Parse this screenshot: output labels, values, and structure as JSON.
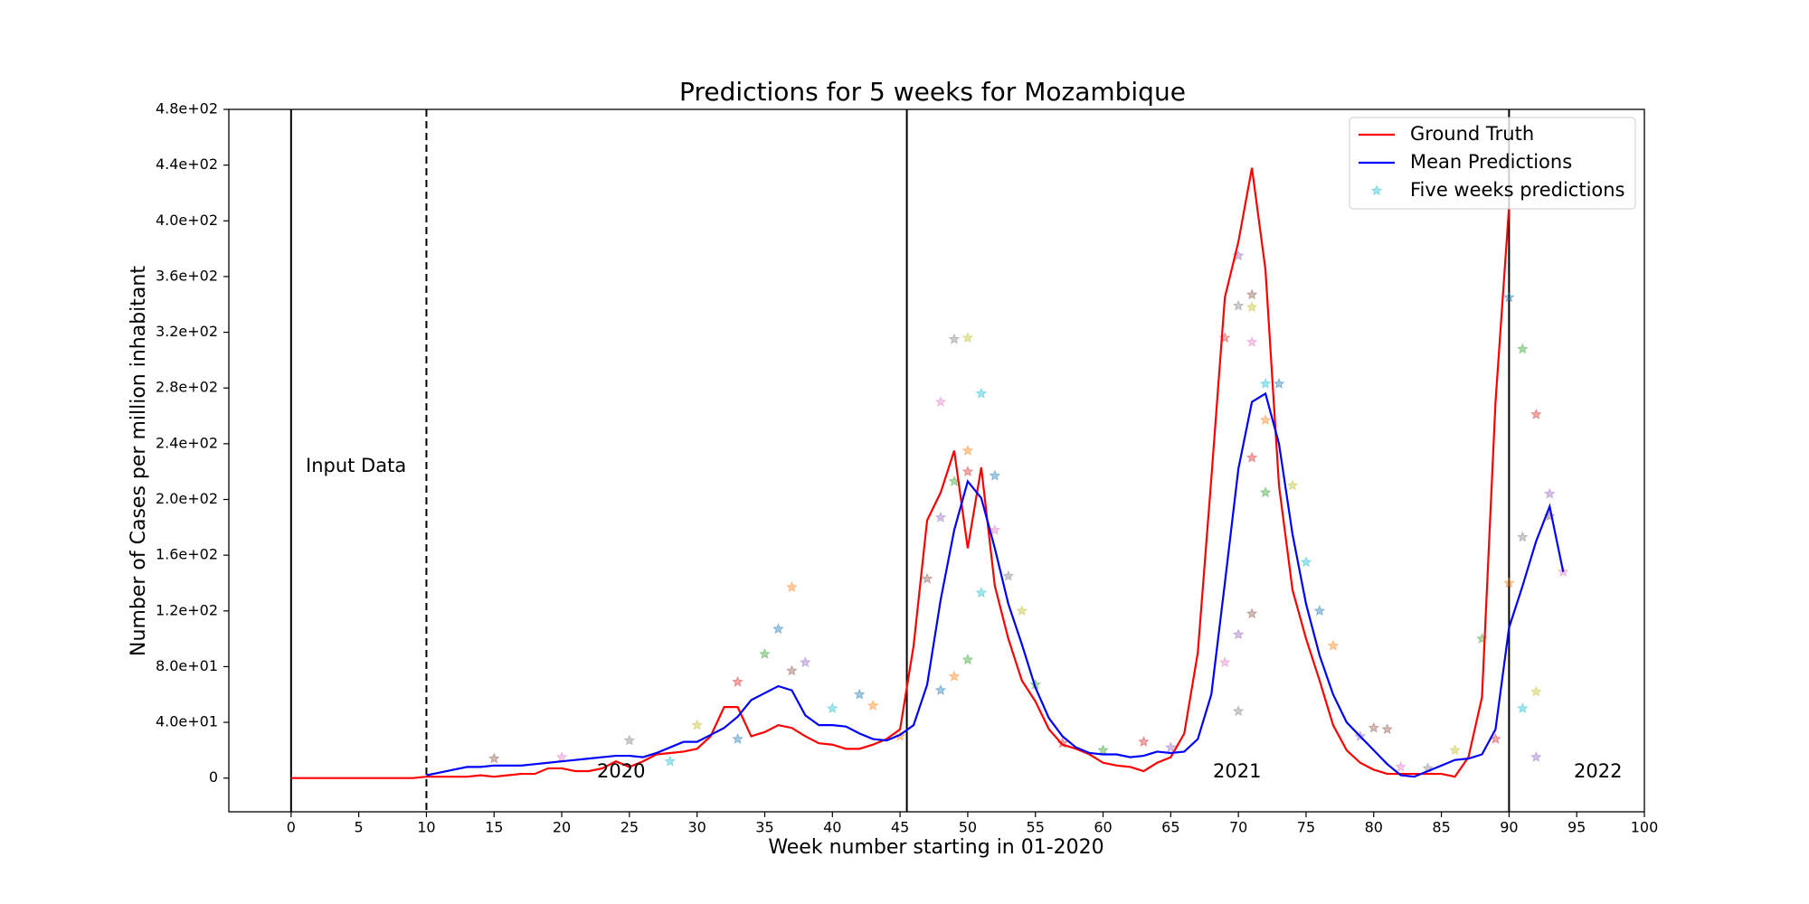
{
  "chart_data": {
    "type": "line",
    "title": "Predictions for 5 weeks for Mozambique",
    "xlabel": "Week number starting in 01-2020",
    "ylabel": "Number of Cases per million inhabitant",
    "xlim": [
      -4.6,
      100
    ],
    "ylim": [
      -24.2,
      480
    ],
    "xticks": [
      0,
      5,
      10,
      15,
      20,
      25,
      30,
      35,
      40,
      45,
      50,
      55,
      60,
      65,
      70,
      75,
      80,
      85,
      90,
      95,
      100
    ],
    "yticks": [
      0,
      {
        "value": 40,
        "label": "4.0e+01"
      },
      {
        "value": 80,
        "label": "8.0e+01"
      },
      {
        "value": 120,
        "label": "1.2e+02"
      },
      {
        "value": 160,
        "label": "1.6e+02"
      },
      {
        "value": 200,
        "label": "2.0e+02"
      },
      {
        "value": 240,
        "label": "2.4e+02"
      },
      {
        "value": 280,
        "label": "2.8e+02"
      },
      {
        "value": 320,
        "label": "3.2e+02"
      },
      {
        "value": 360,
        "label": "3.6e+02"
      },
      {
        "value": 400,
        "label": "4.0e+02"
      },
      {
        "value": 440,
        "label": "4.4e+02"
      },
      {
        "value": 480,
        "label": "4.8e+02"
      }
    ],
    "grid": false,
    "legend": "upper right",
    "vlines": [
      {
        "x": 0,
        "style": "solid"
      },
      {
        "x": 10,
        "style": "dashed"
      },
      {
        "x": 45.5,
        "style": "solid"
      },
      {
        "x": 90,
        "style": "solid"
      }
    ],
    "annotations": [
      "Input Data",
      "2020",
      "2021",
      "2022"
    ],
    "series": [
      {
        "name": "Ground Truth",
        "type": "line",
        "color": "#ff0000",
        "x": [
          0,
          1,
          2,
          3,
          4,
          5,
          6,
          7,
          8,
          9,
          10,
          11,
          12,
          13,
          14,
          15,
          16,
          17,
          18,
          19,
          20,
          21,
          22,
          23,
          24,
          25,
          26,
          27,
          28,
          29,
          30,
          31,
          32,
          33,
          34,
          35,
          36,
          37,
          38,
          39,
          40,
          41,
          42,
          43,
          44,
          45,
          46,
          47,
          48,
          49,
          50,
          51,
          52,
          53,
          54,
          55,
          56,
          57,
          58,
          59,
          60,
          61,
          62,
          63,
          64,
          65,
          66,
          67,
          68,
          69,
          70,
          71,
          72,
          73,
          74,
          75,
          76,
          77,
          78,
          79,
          80,
          81,
          82,
          83,
          84,
          85,
          86,
          87,
          88,
          89,
          90
        ],
        "values": [
          0,
          0,
          0,
          0,
          0,
          0,
          0,
          0,
          0,
          0,
          1,
          1,
          1,
          1,
          2,
          1,
          2,
          3,
          3,
          7,
          7,
          5,
          5,
          7,
          12,
          8,
          12,
          17,
          18,
          19,
          21,
          30,
          51,
          51,
          30,
          33,
          38,
          36,
          30,
          25,
          24,
          21,
          21,
          24,
          28,
          35,
          95,
          185,
          205,
          235,
          165,
          223,
          138,
          100,
          70,
          55,
          35,
          24,
          21,
          17,
          11,
          9,
          8,
          5,
          11,
          15,
          32,
          90,
          215,
          345,
          385,
          438,
          365,
          210,
          135,
          100,
          70,
          38,
          20,
          11,
          6,
          3,
          3,
          3,
          3,
          3,
          1,
          15,
          58,
          270,
          410
        ]
      },
      {
        "name": "Mean Predictions",
        "type": "line",
        "color": "#0000ff",
        "x": [
          10,
          11,
          12,
          13,
          14,
          15,
          16,
          17,
          18,
          19,
          20,
          21,
          22,
          23,
          24,
          25,
          26,
          27,
          28,
          29,
          30,
          31,
          32,
          33,
          34,
          35,
          36,
          37,
          38,
          39,
          40,
          41,
          42,
          43,
          44,
          45,
          46,
          47,
          48,
          49,
          50,
          51,
          52,
          53,
          54,
          55,
          56,
          57,
          58,
          59,
          60,
          61,
          62,
          63,
          64,
          65,
          66,
          67,
          68,
          69,
          70,
          71,
          72,
          73,
          74,
          75,
          76,
          77,
          78,
          79,
          80,
          81,
          82,
          83,
          84,
          85,
          86,
          87,
          88,
          89,
          90,
          91,
          92,
          93,
          94
        ],
        "values": [
          2,
          4,
          6,
          8,
          8,
          9,
          9,
          9,
          10,
          11,
          12,
          13,
          14,
          15,
          16,
          16,
          15,
          18,
          22,
          26,
          26,
          31,
          36,
          44,
          56,
          61,
          66,
          63,
          45,
          38,
          38,
          37,
          32,
          28,
          27,
          31,
          38,
          67,
          128,
          178,
          213,
          201,
          165,
          125,
          96,
          65,
          43,
          30,
          22,
          18,
          17,
          17,
          15,
          16,
          19,
          18,
          19,
          28,
          60,
          140,
          222,
          270,
          276,
          240,
          175,
          125,
          88,
          60,
          40,
          30,
          20,
          10,
          2,
          1,
          5,
          9,
          13,
          14,
          17,
          35,
          108,
          138,
          170,
          195,
          148
        ]
      },
      {
        "name": "Five weeks predictions",
        "type": "scatter",
        "color": "#17becf",
        "point_colors": [
          "#1f77b4",
          "#ff7f0e",
          "#2ca02c",
          "#d62728",
          "#9467bd",
          "#8c564b",
          "#e377c2",
          "#7f7f7f",
          "#bcbd22",
          "#17becf"
        ],
        "x": [
          36,
          37,
          35,
          33,
          38,
          37,
          48,
          49,
          50,
          51,
          52,
          50,
          49,
          50,
          48,
          47,
          52,
          53,
          54,
          51,
          48,
          49,
          50,
          69,
          70,
          71,
          71,
          70,
          71,
          72,
          73,
          72,
          72,
          71,
          70,
          71,
          69,
          70,
          74,
          75,
          76,
          77,
          91,
          92,
          93,
          93,
          94,
          91,
          92,
          91,
          90,
          90,
          88,
          89,
          92,
          15,
          20,
          25,
          30,
          40,
          42,
          43,
          60,
          63,
          65,
          80,
          82,
          84,
          86,
          28,
          33,
          45,
          55,
          57,
          79,
          81
        ],
        "values": [
          107,
          137,
          89,
          69,
          83,
          77,
          270,
          315,
          316,
          276,
          217,
          235,
          213,
          220,
          187,
          143,
          178,
          145,
          120,
          133,
          63,
          73,
          85,
          316,
          375,
          347,
          313,
          339,
          338,
          283,
          283,
          257,
          205,
          230,
          103,
          118,
          83,
          48,
          210,
          155,
          120,
          95,
          308,
          261,
          204,
          188,
          148,
          173,
          62,
          50,
          345,
          140,
          100,
          28,
          15,
          14,
          15,
          27,
          38,
          50,
          60,
          52,
          20,
          26,
          22,
          36,
          8,
          7,
          20,
          12,
          28,
          30,
          67,
          25,
          30,
          35
        ]
      }
    ]
  }
}
